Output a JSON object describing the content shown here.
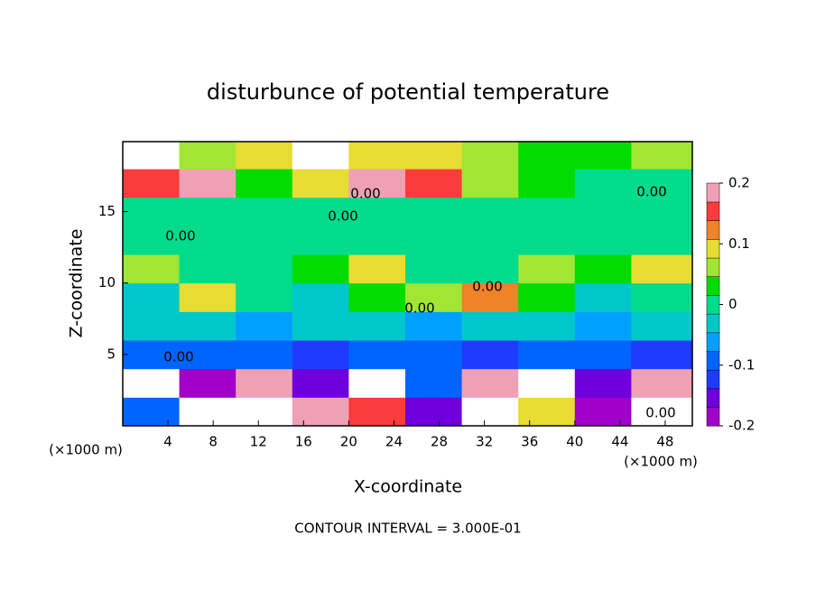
{
  "chart_data": {
    "type": "heatmap",
    "title": "disturbunce of potential temperature",
    "x_label": "X-coordinate",
    "y_label": "Z-coordinate",
    "x_unit": "(×1000 m)",
    "x_unit_right": "(×1000 m)",
    "footnote": "CONTOUR INTERVAL = 3.000E-01",
    "annotations": [
      "0.00",
      "0.00",
      "0.00",
      "0.00",
      "0.00",
      "0.00",
      "0.00",
      "0.00"
    ],
    "xlim": [
      0,
      50.4
    ],
    "ylim": [
      0,
      19.9
    ],
    "xticks": [
      4,
      8,
      12,
      16,
      20,
      24,
      28,
      32,
      36,
      40,
      44,
      48
    ],
    "yticks": [
      5,
      10,
      15
    ],
    "x": [
      2.5,
      7.5,
      12.5,
      17.5,
      22.5,
      27.5,
      32.5,
      37.5,
      42.5,
      47.5
    ],
    "y": [
      1,
      3,
      5,
      7,
      9,
      11,
      13,
      15,
      17,
      19
    ],
    "z": [
      [
        -0.1,
        0.25,
        -0.25,
        0.2,
        0.15,
        -0.15,
        0.25,
        0.1,
        -0.2,
        0.25
      ],
      [
        0.25,
        -0.2,
        0.2,
        -0.15,
        0.25,
        -0.1,
        0.2,
        0.25,
        -0.15,
        0.2
      ],
      [
        -0.1,
        -0.08,
        -0.1,
        -0.12,
        -0.1,
        -0.1,
        -0.12,
        -0.1,
        -0.1,
        -0.12
      ],
      [
        -0.04,
        -0.04,
        -0.05,
        -0.04,
        -0.04,
        -0.05,
        -0.04,
        -0.04,
        -0.05,
        -0.04
      ],
      [
        -0.02,
        0.1,
        0.0,
        -0.03,
        0.02,
        0.05,
        0.12,
        0.02,
        -0.02,
        0.0
      ],
      [
        0.05,
        0.0,
        0.01,
        0.02,
        0.08,
        0.01,
        0.0,
        0.06,
        0.02,
        0.1
      ],
      [
        0.01,
        0.01,
        0.01,
        0.01,
        0.01,
        0.01,
        0.01,
        0.01,
        0.01,
        0.01
      ],
      [
        0.0,
        0.0,
        0.0,
        0.0,
        0.0,
        0.0,
        0.0,
        0.0,
        0.0,
        0.0
      ],
      [
        0.15,
        0.2,
        0.03,
        0.1,
        0.18,
        0.15,
        0.05,
        0.02,
        0.01,
        0.0
      ],
      [
        0.25,
        0.05,
        0.1,
        -0.25,
        0.1,
        0.1,
        0.05,
        0.03,
        0.02,
        0.05
      ]
    ],
    "clim": [
      -0.2,
      0.2
    ],
    "cticks": [
      -0.2,
      -0.1,
      0,
      0.1,
      0.2
    ],
    "colors": [
      "#a000c8",
      "#6e00dc",
      "#1e3cff",
      "#0064ff",
      "#00a0ff",
      "#00c8c8",
      "#00dc8c",
      "#00dc00",
      "#a0e632",
      "#e6dc32",
      "#f08228",
      "#fa3c3c",
      "#f0a0b4"
    ]
  }
}
